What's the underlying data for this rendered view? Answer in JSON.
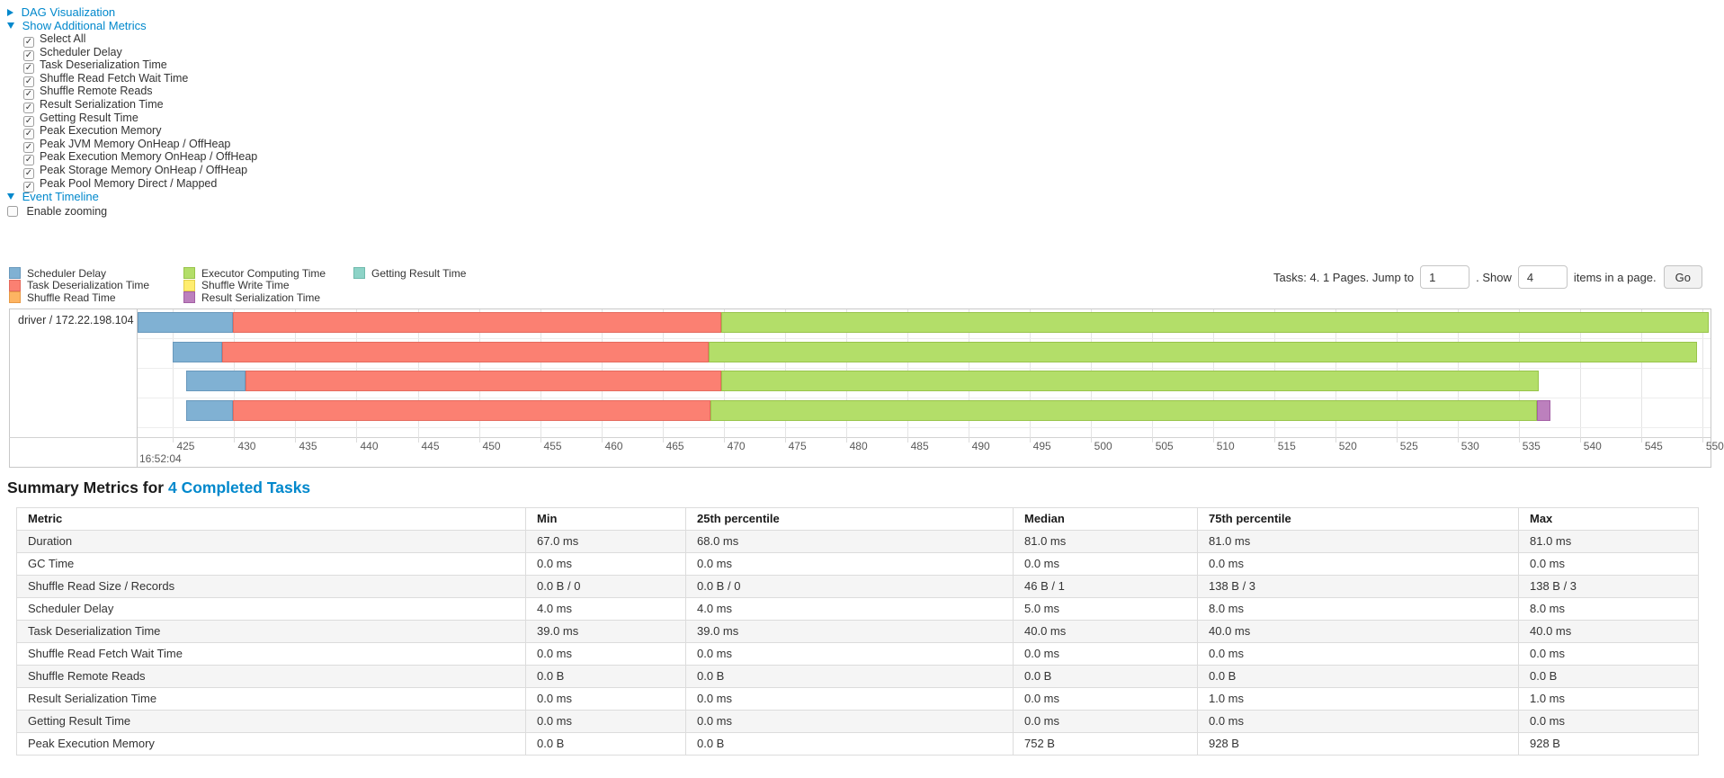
{
  "page": {
    "link_color": "#0088cc",
    "toggles": {
      "dag": {
        "label": "DAG Visualization",
        "state": "collapsed"
      },
      "metrics": {
        "label": "Show Additional Metrics",
        "state": "expanded"
      },
      "timeline": {
        "label": "Event Timeline",
        "state": "expanded"
      }
    },
    "metrics_checkboxes": [
      "Select All",
      "Scheduler Delay",
      "Task Deserialization Time",
      "Shuffle Read Fetch Wait Time",
      "Shuffle Remote Reads",
      "Result Serialization Time",
      "Getting Result Time",
      "Peak Execution Memory",
      "Peak JVM Memory OnHeap / OffHeap",
      "Peak Execution Memory OnHeap / OffHeap",
      "Peak Storage Memory OnHeap / OffHeap",
      "Peak Pool Memory Direct / Mapped"
    ],
    "enable_zooming": {
      "label": "Enable zooming",
      "checked": false
    }
  },
  "pagination": {
    "info_text": "Tasks: 4. 1 Pages. Jump to",
    "jump_value": "1",
    "show_label": ". Show",
    "show_value": "4",
    "suffix_text": "items in a page.",
    "go_label": "Go"
  },
  "chart_data": {
    "type": "timeline",
    "group_label": "driver / 172.22.198.104",
    "axis": {
      "min": 422.1,
      "max": 550.6,
      "tick_start": 425,
      "tick_end": 550,
      "tick_step": 5,
      "time_of_day": "16:52:04",
      "unit": "ms"
    },
    "series_styles": {
      "scheduler-delay": {
        "label": "Scheduler Delay",
        "fill": "#80B1D3",
        "stroke": "#6898BC"
      },
      "task-deserialization": {
        "label": "Task Deserialization Time",
        "fill": "#FB8072",
        "stroke": "#E56A5D"
      },
      "shuffle-read": {
        "label": "Shuffle Read Time",
        "fill": "#FDB462",
        "stroke": "#E89A46"
      },
      "executor-computing": {
        "label": "Executor Computing Time",
        "fill": "#B3DE69",
        "stroke": "#98C44A"
      },
      "shuffle-write": {
        "label": "Shuffle Write Time",
        "fill": "#FFED6F",
        "stroke": "#E3CE4B"
      },
      "result-serialization": {
        "label": "Result Serialization Time",
        "fill": "#BC80BD",
        "stroke": "#A35FA5"
      },
      "getting-result": {
        "label": "Getting Result Time",
        "fill": "#8DD3C7",
        "stroke": "#6FBAAC"
      }
    },
    "legend_columns": [
      [
        "scheduler-delay",
        "task-deserialization",
        "shuffle-read"
      ],
      [
        "executor-computing",
        "shuffle-write",
        "result-serialization"
      ],
      [
        "getting-result"
      ]
    ],
    "tasks": [
      {
        "name": "task-0",
        "segments": [
          [
            "scheduler-delay",
            422.1,
            429.9
          ],
          [
            "task-deserialization",
            429.9,
            469.8
          ],
          [
            "executor-computing",
            469.8,
            550.5
          ]
        ]
      },
      {
        "name": "task-1",
        "segments": [
          [
            "scheduler-delay",
            425.0,
            429.0
          ],
          [
            "task-deserialization",
            429.0,
            468.8
          ],
          [
            "executor-computing",
            468.8,
            549.6
          ]
        ]
      },
      {
        "name": "task-2",
        "segments": [
          [
            "scheduler-delay",
            426.1,
            430.9
          ],
          [
            "task-deserialization",
            430.9,
            469.8
          ],
          [
            "executor-computing",
            469.8,
            536.6
          ]
        ]
      },
      {
        "name": "task-3",
        "segments": [
          [
            "scheduler-delay",
            426.1,
            429.9
          ],
          [
            "task-deserialization",
            429.9,
            468.9
          ],
          [
            "executor-computing",
            468.9,
            536.5
          ],
          [
            "result-serialization",
            536.5,
            537.6
          ]
        ]
      }
    ]
  },
  "summary": {
    "heading_prefix": "Summary Metrics for",
    "heading_link": "4 Completed Tasks",
    "columns": [
      "Metric",
      "Min",
      "25th percentile",
      "Median",
      "75th percentile",
      "Max"
    ],
    "rows": [
      {
        "metric": "Duration",
        "values": [
          "67.0 ms",
          "68.0 ms",
          "81.0 ms",
          "81.0 ms",
          "81.0 ms"
        ]
      },
      {
        "metric": "GC Time",
        "values": [
          "0.0 ms",
          "0.0 ms",
          "0.0 ms",
          "0.0 ms",
          "0.0 ms"
        ]
      },
      {
        "metric": "Shuffle Read Size / Records",
        "values": [
          "0.0 B / 0",
          "0.0 B / 0",
          "46 B / 1",
          "138 B / 3",
          "138 B / 3"
        ]
      },
      {
        "metric": "Scheduler Delay",
        "values": [
          "4.0 ms",
          "4.0 ms",
          "5.0 ms",
          "8.0 ms",
          "8.0 ms"
        ]
      },
      {
        "metric": "Task Deserialization Time",
        "values": [
          "39.0 ms",
          "39.0 ms",
          "40.0 ms",
          "40.0 ms",
          "40.0 ms"
        ]
      },
      {
        "metric": "Shuffle Read Fetch Wait Time",
        "values": [
          "0.0 ms",
          "0.0 ms",
          "0.0 ms",
          "0.0 ms",
          "0.0 ms"
        ]
      },
      {
        "metric": "Shuffle Remote Reads",
        "values": [
          "0.0 B",
          "0.0 B",
          "0.0 B",
          "0.0 B",
          "0.0 B"
        ]
      },
      {
        "metric": "Result Serialization Time",
        "values": [
          "0.0 ms",
          "0.0 ms",
          "0.0 ms",
          "1.0 ms",
          "1.0 ms"
        ]
      },
      {
        "metric": "Getting Result Time",
        "values": [
          "0.0 ms",
          "0.0 ms",
          "0.0 ms",
          "0.0 ms",
          "0.0 ms"
        ]
      },
      {
        "metric": "Peak Execution Memory",
        "values": [
          "0.0 B",
          "0.0 B",
          "752 B",
          "928 B",
          "928 B"
        ]
      }
    ]
  }
}
